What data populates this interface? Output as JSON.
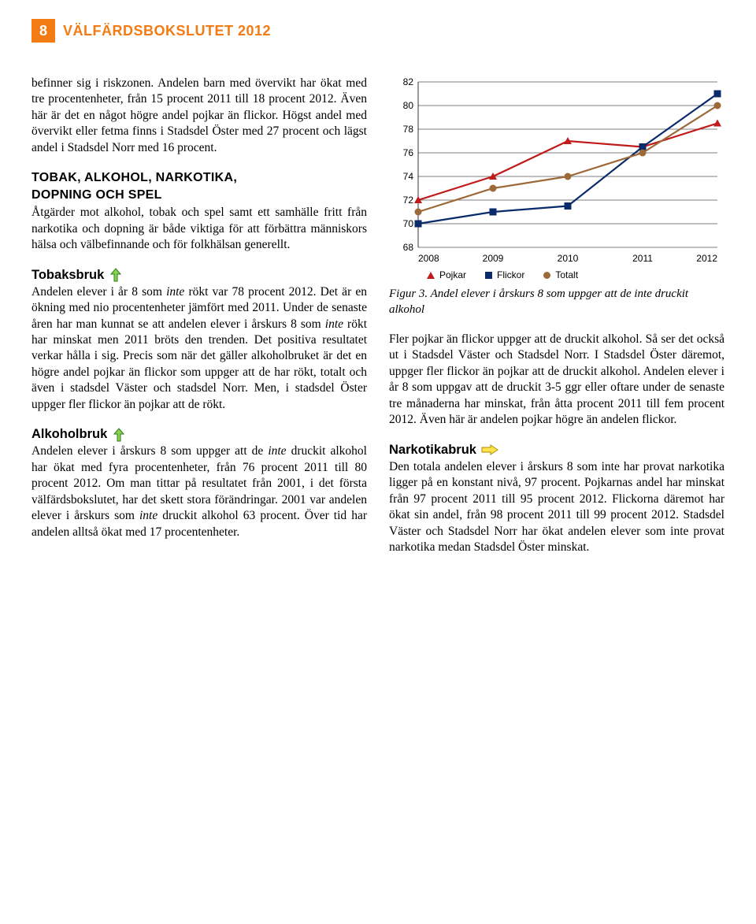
{
  "header": {
    "page_number": "8",
    "title": "VÄLFÄRDSBOKSLUTET 2012"
  },
  "left": {
    "intro": "befinner sig i riskzonen. Andelen barn med övervikt har ökat med tre procentenheter, från 15 procent 2011 till 18 procent 2012. Även här är det en något högre andel pojkar än flickor. Högst andel med övervikt eller fetma finns i Stadsdel Öster med 27 procent och lägst andel i Stadsdel Norr med 16 procent.",
    "section_head_1": "TOBAK, ALKOHOL, NARKOTIKA,",
    "section_head_2": "DOPNING OCH SPEL",
    "section_para": "Åtgärder mot alkohol, tobak och spel samt ett samhälle fritt från narkotika och dopning är både viktiga för att förbättra människors hälsa och välbefinnande och för folkhälsan generellt.",
    "tobak_head": "Tobaksbruk",
    "tobak_para_a": "Andelen elever i år 8 som ",
    "tobak_italic_a": "inte",
    "tobak_para_b": " rökt var 78 procent 2012. Det är en ökning med nio procentenheter jämfört med 2011. Under de senaste åren har man kunnat se att andelen elever i årskurs 8 som ",
    "tobak_italic_b": "inte",
    "tobak_para_c": " rökt har minskat men 2011 bröts den trenden. Det positiva resultatet verkar hålla i sig. Precis som när det gäller alkoholbruket är det en högre andel pojkar än flickor som uppger att de har rökt, totalt och även i stadsdel Väster och stadsdel Norr. Men, i stadsdel Öster uppger fler flickor än pojkar att de rökt.",
    "alk_head": "Alkoholbruk",
    "alk_para_a": "Andelen elever i årskurs 8 som uppger att de ",
    "alk_italic_a": "inte",
    "alk_para_b": " druckit alkohol har ökat med fyra procentenheter, från 76 procent 2011 till 80 procent 2012. Om man tittar på resultatet från 2001, i det första välfärdsbokslutet, har det skett stora förändringar. 2001 var andelen elever i årskurs som ",
    "alk_italic_b": "inte",
    "alk_para_c": " druckit alkohol 63 procent. Över tid har andelen alltså ökat med 17 procentenheter."
  },
  "chart": {
    "type": "line",
    "years": [
      "2008",
      "2009",
      "2010",
      "2011",
      "2012"
    ],
    "ylim": [
      68,
      82
    ],
    "ytick_step": 2,
    "yticks": [
      68,
      70,
      72,
      74,
      76,
      78,
      80,
      82
    ],
    "series": [
      {
        "name": "Pojkar",
        "color": "#c11a1a",
        "marker": "triangle",
        "values": [
          72,
          74,
          77,
          76.5,
          78.5
        ]
      },
      {
        "name": "Flickor",
        "color": "#0a2b6b",
        "marker": "square",
        "values": [
          70,
          71,
          71.5,
          76.5,
          81
        ]
      },
      {
        "name": "Totalt",
        "color": "#9c6a39",
        "marker": "circle",
        "values": [
          71,
          73,
          74,
          76,
          80
        ]
      }
    ],
    "grid_color": "#000000",
    "background_color": "#ffffff",
    "label_font_family": "Arial",
    "label_fontsize": 12
  },
  "right": {
    "fig_caption": "Figur 3. Andel elever i årskurs 8 som uppger att de inte druckit alkohol",
    "fler_para": "Fler pojkar än flickor uppger att de druckit alkohol. Så ser det också ut i Stadsdel Väster och Stadsdel Norr. I Stadsdel Öster däremot, uppger fler flickor än pojkar att de druckit alkohol. Andelen elever i år 8 som uppgav att de druckit 3-5 ggr eller oftare under de senaste tre månaderna har minskat, från åtta procent 2011 till fem procent 2012. Även här är andelen pojkar högre än andelen flickor.",
    "nark_head": "Narkotikabruk",
    "nark_para": "Den totala andelen elever i årskurs 8 som inte har provat narkotika ligger på en konstant nivå, 97 procent. Pojkarnas andel har minskat från 97 procent 2011 till 95 procent 2012. Flickorna däremot har ökat sin andel, från 98 procent 2011 till 99 procent 2012. Stadsdel Väster och Stadsdel Norr har ökat andelen elever som inte provat narkotika medan Stadsdel Öster minskat."
  },
  "colors": {
    "accent": "#f27b13",
    "arrow_green_fill": "#8bd24c",
    "arrow_green_stroke": "#2e7d1f",
    "arrow_yellow_fill": "#ffe44d",
    "arrow_yellow_stroke": "#b08a00"
  }
}
